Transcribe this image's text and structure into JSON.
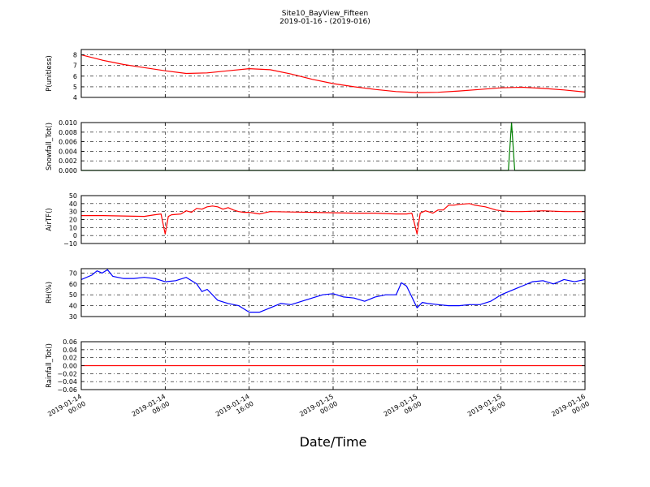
{
  "figure": {
    "title": "Site10_BayView_Fifteen",
    "subtitle": "2019-01-16 - (2019-016)",
    "xlabel": "Date/Time"
  },
  "chart_data": [
    {
      "type": "line",
      "ylabel": "P(unitless)",
      "ylim": [
        4,
        8.5
      ],
      "yticks": [
        4,
        5,
        6,
        7,
        8
      ],
      "ytick_labels": [
        "4",
        "5",
        "6",
        "7",
        "8"
      ],
      "xlim": [
        0,
        48
      ],
      "color": "#ff0000",
      "grid": true,
      "series": [
        {
          "x": [
            0,
            2,
            4,
            6,
            8,
            10,
            12,
            14,
            16,
            18,
            20,
            22,
            24,
            26,
            28,
            30,
            32,
            34,
            36,
            38,
            40,
            42,
            44,
            46,
            48
          ],
          "values": [
            8.0,
            7.5,
            7.1,
            6.8,
            6.5,
            6.25,
            6.3,
            6.5,
            6.7,
            6.6,
            6.2,
            5.7,
            5.3,
            5.0,
            4.75,
            4.55,
            4.45,
            4.48,
            4.6,
            4.75,
            4.9,
            4.95,
            4.85,
            4.7,
            4.5
          ]
        }
      ]
    },
    {
      "type": "line",
      "ylabel": "Snowfall_Tot()",
      "ylim": [
        0,
        0.01
      ],
      "yticks": [
        0,
        0.002,
        0.004,
        0.006,
        0.008,
        0.01
      ],
      "ytick_labels": [
        "0.000",
        "0.002",
        "0.004",
        "0.006",
        "0.008",
        "0.010"
      ],
      "xlim": [
        0,
        48
      ],
      "color": "#008000",
      "grid": true,
      "series": [
        {
          "x": [
            0,
            40.7,
            41.0,
            41.3,
            48
          ],
          "values": [
            0,
            0,
            0.01,
            0,
            0
          ]
        }
      ]
    },
    {
      "type": "line",
      "ylabel": "AirTF()",
      "ylim": [
        -10,
        50
      ],
      "yticks": [
        -10,
        0,
        10,
        20,
        30,
        40,
        50
      ],
      "ytick_labels": [
        "−10",
        "0",
        "10",
        "20",
        "30",
        "40",
        "50"
      ],
      "xlim": [
        0,
        48
      ],
      "color": "#ff0000",
      "grid": true,
      "series": [
        {
          "x": [
            0,
            2,
            4,
            6,
            7,
            7.6,
            8.0,
            8.3,
            8.6,
            9.5,
            10,
            10.5,
            11,
            11.5,
            12,
            12.5,
            13,
            13.5,
            14,
            14.5,
            15,
            15.5,
            16,
            17,
            18,
            20,
            22,
            24,
            26,
            28,
            30,
            31,
            31.5,
            32.0,
            32.3,
            32.8,
            33.5,
            34,
            34.5,
            35,
            35.5,
            36,
            37,
            37.5,
            38,
            38.5,
            39,
            39.5,
            40,
            41,
            42,
            44,
            46,
            48
          ],
          "values": [
            25,
            25,
            24.5,
            24,
            26,
            27,
            2,
            24,
            26,
            27,
            31,
            29,
            34,
            33,
            36,
            37,
            36,
            33,
            35,
            32,
            30,
            29,
            29,
            27,
            30,
            29.5,
            29,
            28.5,
            28,
            28,
            27,
            27,
            28,
            2,
            28,
            31,
            28,
            32,
            32,
            38,
            38,
            39,
            40,
            38,
            37,
            36,
            34,
            32,
            31,
            30,
            30,
            31,
            30,
            30
          ]
        }
      ]
    },
    {
      "type": "line",
      "ylabel": "RH(%)",
      "ylim": [
        30,
        74
      ],
      "yticks": [
        30,
        40,
        50,
        60,
        70
      ],
      "ytick_labels": [
        "30",
        "40",
        "50",
        "60",
        "70"
      ],
      "xlim": [
        0,
        48
      ],
      "color": "#0000ff",
      "grid": true,
      "series": [
        {
          "x": [
            0,
            1,
            1.5,
            2,
            2.5,
            3,
            4,
            5,
            6,
            7,
            8,
            9,
            10,
            11,
            11.5,
            12,
            13,
            14,
            15,
            16,
            17,
            18,
            19,
            20,
            21,
            22,
            23,
            24,
            25,
            26,
            27,
            28,
            29,
            30,
            30.5,
            31,
            31.5,
            32.0,
            32.5,
            33,
            34,
            35,
            36,
            37,
            38,
            39,
            40,
            41,
            42,
            43,
            44,
            45,
            46,
            47,
            48
          ],
          "values": [
            64,
            68,
            72,
            70,
            73,
            67,
            65,
            65,
            66,
            65,
            62,
            63,
            66,
            60,
            53,
            55,
            45,
            42,
            40,
            34,
            34,
            38,
            42,
            41,
            44,
            47,
            50,
            51,
            48,
            47,
            44,
            48,
            50,
            50,
            61,
            58,
            48,
            38,
            43,
            42,
            41,
            40,
            40,
            41,
            41,
            44,
            50,
            54,
            58,
            62,
            63,
            60,
            64,
            62,
            64
          ]
        }
      ]
    },
    {
      "type": "line",
      "ylabel": "Rainfall_Tot()",
      "ylim": [
        -0.06,
        0.06
      ],
      "yticks": [
        -0.06,
        -0.04,
        -0.02,
        0,
        0.02,
        0.04,
        0.06
      ],
      "ytick_labels": [
        "−0.06",
        "−0.04",
        "−0.02",
        "0.00",
        "0.02",
        "0.04",
        "0.06"
      ],
      "xlim": [
        0,
        48
      ],
      "color": "#ff0000",
      "grid": true,
      "series": [
        {
          "x": [
            0,
            48
          ],
          "values": [
            0,
            0
          ]
        }
      ]
    }
  ],
  "x_ticks": [
    {
      "x": 0,
      "line1": "2019-01-14",
      "line2": "00:00"
    },
    {
      "x": 8,
      "line1": "2019-01-14",
      "line2": "08:00"
    },
    {
      "x": 16,
      "line1": "2019-01-14",
      "line2": "16:00"
    },
    {
      "x": 24,
      "line1": "2019-01-15",
      "line2": "00:00"
    },
    {
      "x": 32,
      "line1": "2019-01-15",
      "line2": "08:00"
    },
    {
      "x": 40,
      "line1": "2019-01-15",
      "line2": "16:00"
    },
    {
      "x": 48,
      "line1": "2019-01-16",
      "line2": "00:00"
    }
  ]
}
